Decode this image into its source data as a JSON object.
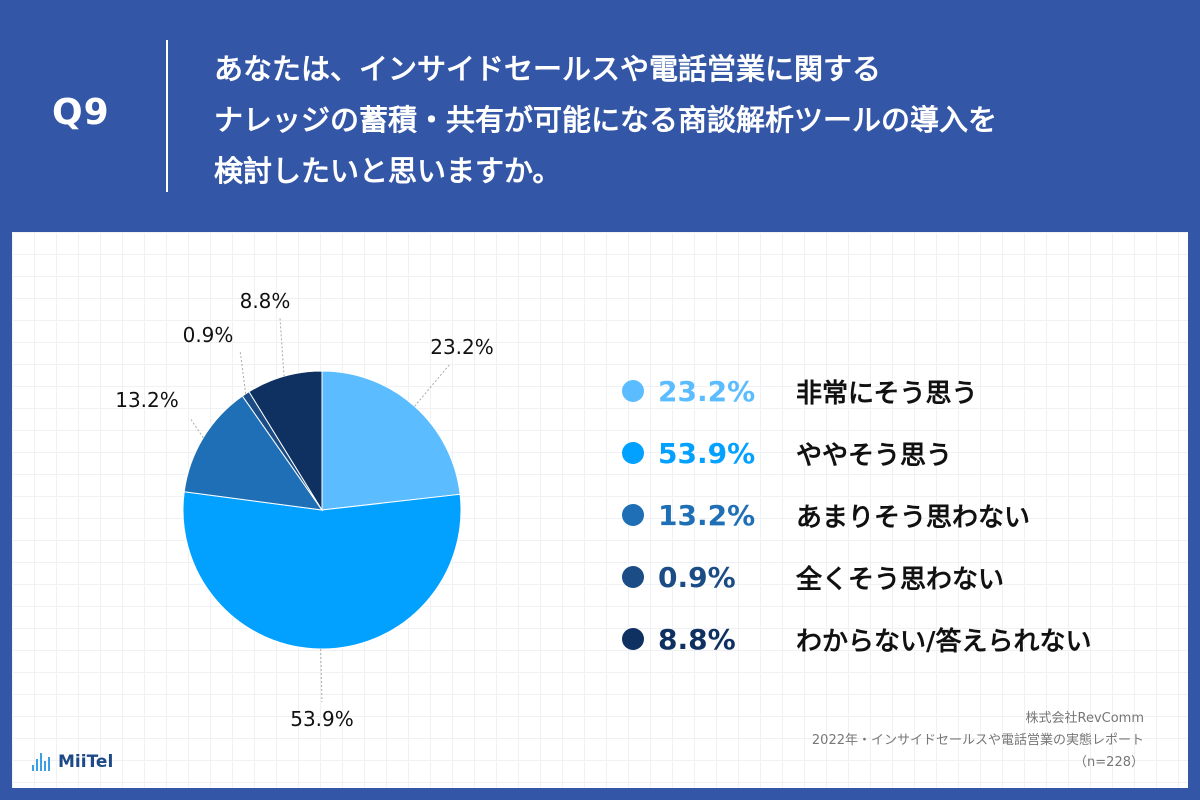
{
  "header": {
    "q_label": "Q9",
    "question_lines": [
      "あなたは、インサイドセールスや電話営業に関する",
      "ナレッジの蓄積・共有が可能になる商談解析ツールの導入を",
      "検討したいと思いますか。"
    ]
  },
  "chart_data": {
    "type": "pie",
    "start_angle_deg": 0,
    "direction": "clockwise",
    "unit": "%",
    "slices": [
      {
        "label": "非常にそう思う",
        "value": 23.2,
        "value_label": "23.2%",
        "color": "#5bbcff"
      },
      {
        "label": "ややそう思う",
        "value": 53.9,
        "value_label": "53.9%",
        "color": "#03a1ff"
      },
      {
        "label": "あまりそう思わない",
        "value": 13.2,
        "value_label": "13.2%",
        "color": "#1e6fb5"
      },
      {
        "label": "全くそう思わない",
        "value": 0.9,
        "value_label": "0.9%",
        "color": "#1b4c85"
      },
      {
        "label": "わからない/答えられない",
        "value": 8.8,
        "value_label": "8.8%",
        "color": "#0e3162"
      }
    ]
  },
  "footer": {
    "company": "株式会社RevComm",
    "report": "2022年・インサイドセールスや電話営業の実態レポート",
    "sample": "（n=228）"
  },
  "logo": {
    "text": "MiiTel",
    "color": "#39a0e6"
  }
}
